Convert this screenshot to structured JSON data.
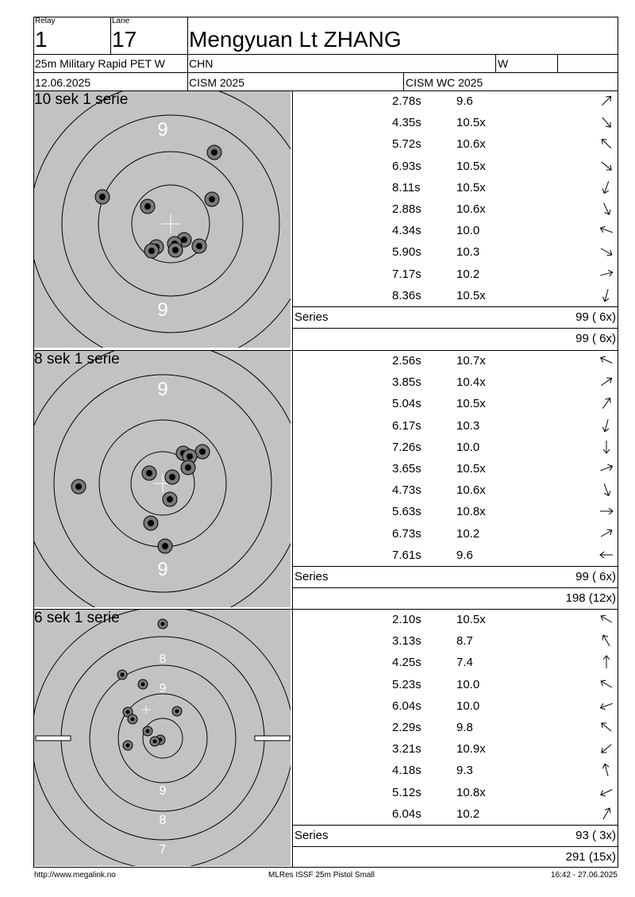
{
  "header": {
    "relay_label": "Relay",
    "relay_value": "1",
    "lane_label": "Lane",
    "lane_value": "17",
    "athlete_name": "Mengyuan Lt ZHANG",
    "event": "25m Military Rapid PET W",
    "nation": "CHN",
    "gender": "W",
    "extra": "",
    "date": "12.06.2025",
    "competition": "CISM 2025",
    "venue": "CISM WC 2025"
  },
  "series": [
    {
      "title": "10 sek 1 serie",
      "ring_labels": [
        "9",
        "9"
      ],
      "shots": [
        {
          "time": "2.78s",
          "score": "9.6",
          "dir": 45
        },
        {
          "time": "4.35s",
          "score": "10.5x",
          "dir": 140
        },
        {
          "time": "5.72s",
          "score": "10.6x",
          "dir": -45
        },
        {
          "time": "6.93s",
          "score": "10.5x",
          "dir": 130
        },
        {
          "time": "8.11s",
          "score": "10.5x",
          "dir": -160
        },
        {
          "time": "2.88s",
          "score": "10.6x",
          "dir": 155
        },
        {
          "time": "4.34s",
          "score": "10.0",
          "dir": -70
        },
        {
          "time": "5.90s",
          "score": "10.3",
          "dir": 120
        },
        {
          "time": "7.17s",
          "score": "10.2",
          "dir": 75
        },
        {
          "time": "8.36s",
          "score": "10.5x",
          "dir": -165
        }
      ],
      "series_label": "Series",
      "series_total": "99 ( 6x)",
      "running_total": "99 ( 6x)"
    },
    {
      "title": "8 sek 1 serie",
      "ring_labels": [
        "9",
        "9"
      ],
      "shots": [
        {
          "time": "2.56s",
          "score": "10.7x",
          "dir": -65
        },
        {
          "time": "3.85s",
          "score": "10.4x",
          "dir": 55
        },
        {
          "time": "5.04s",
          "score": "10.5x",
          "dir": 35
        },
        {
          "time": "6.17s",
          "score": "10.3",
          "dir": -165
        },
        {
          "time": "7.26s",
          "score": "10.0",
          "dir": 180
        },
        {
          "time": "3.65s",
          "score": "10.5x",
          "dir": 70
        },
        {
          "time": "4.73s",
          "score": "10.6x",
          "dir": 160
        },
        {
          "time": "5.63s",
          "score": "10.8x",
          "dir": 90
        },
        {
          "time": "6.73s",
          "score": "10.2",
          "dir": 60
        },
        {
          "time": "7.61s",
          "score": "9.6",
          "dir": -90
        }
      ],
      "series_label": "Series",
      "series_total": "99 ( 6x)",
      "running_total": "198 (12x)"
    },
    {
      "title": "6 sek 1 serie",
      "ring_labels": [
        "8",
        "9",
        "9",
        "8",
        "7"
      ],
      "shots": [
        {
          "time": "2.10s",
          "score": "10.5x",
          "dir": -60
        },
        {
          "time": "3.13s",
          "score": "8.7",
          "dir": -30
        },
        {
          "time": "4.25s",
          "score": "7.4",
          "dir": 0
        },
        {
          "time": "5.23s",
          "score": "10.0",
          "dir": -60
        },
        {
          "time": "6.04s",
          "score": "10.0",
          "dir": -110
        },
        {
          "time": "2.29s",
          "score": "9.8",
          "dir": -50
        },
        {
          "time": "3.21s",
          "score": "10.9x",
          "dir": -130
        },
        {
          "time": "4.18s",
          "score": "9.3",
          "dir": -15
        },
        {
          "time": "5.12s",
          "score": "10.8x",
          "dir": -115
        },
        {
          "time": "6.04s",
          "score": "10.2",
          "dir": 30
        }
      ],
      "series_label": "Series",
      "series_total": "93 ( 3x)",
      "running_total": "291 (15x)"
    }
  ],
  "footer": {
    "left": "http://www.megalink.no",
    "center": "MLRes ISSF 25m Pistol Small",
    "right": "16:42 - 27.06.2025"
  }
}
